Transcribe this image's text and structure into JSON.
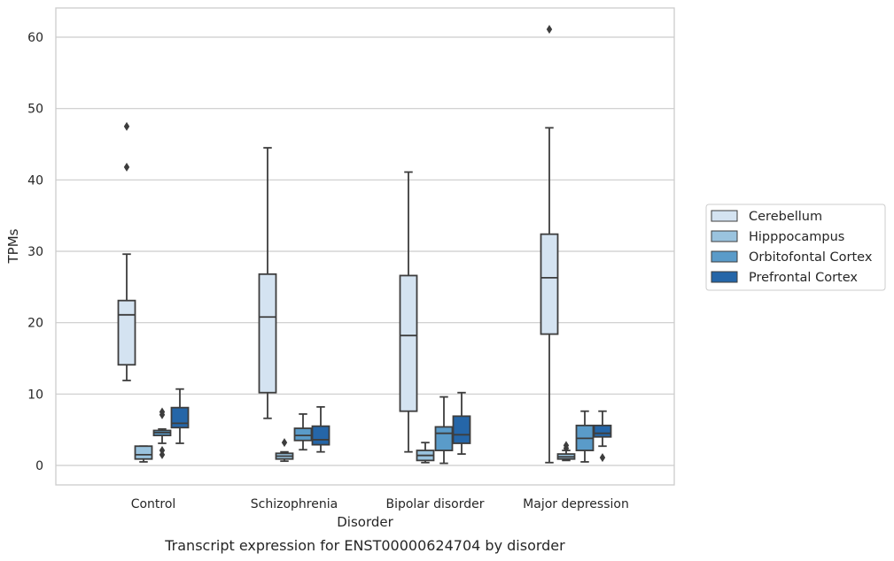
{
  "chart_data": {
    "type": "box",
    "title": "Transcript expression for ENST00000624704 by disorder",
    "xlabel": "Disorder",
    "ylabel": "TPMs",
    "ylim": [
      -2.6,
      64
    ],
    "yticks": [
      0,
      10,
      20,
      30,
      40,
      50,
      60
    ],
    "grid": "horizontal",
    "legend_position": "right",
    "categories": [
      "Control",
      "Schizophrenia",
      "Bipolar disorder",
      "Major depression"
    ],
    "series": [
      {
        "name": "Cerebellum",
        "color": "#d4e3f1",
        "boxes": [
          {
            "whislo": 11.9,
            "q1": 14.1,
            "med": 21.1,
            "q3": 23.1,
            "whishi": 29.6,
            "fliers": [
              41.8,
              47.5
            ]
          },
          {
            "whislo": 6.6,
            "q1": 10.2,
            "med": 20.8,
            "q3": 26.8,
            "whishi": 44.5,
            "fliers": []
          },
          {
            "whislo": 1.9,
            "q1": 7.6,
            "med": 18.2,
            "q3": 26.6,
            "whishi": 41.1,
            "fliers": []
          },
          {
            "whislo": 0.4,
            "q1": 18.4,
            "med": 26.3,
            "q3": 32.4,
            "whishi": 47.3,
            "fliers": [
              61.1
            ]
          }
        ]
      },
      {
        "name": "Hipppocampus",
        "color": "#9ac3de",
        "boxes": [
          {
            "whislo": 0.5,
            "q1": 0.9,
            "med": 1.5,
            "q3": 2.7,
            "whishi": 2.7,
            "fliers": []
          },
          {
            "whislo": 0.6,
            "q1": 0.9,
            "med": 1.3,
            "q3": 1.7,
            "whishi": 1.9,
            "fliers": [
              3.2
            ]
          },
          {
            "whislo": 0.4,
            "q1": 0.7,
            "med": 1.4,
            "q3": 2.1,
            "whishi": 3.2,
            "fliers": []
          },
          {
            "whislo": 0.7,
            "q1": 0.9,
            "med": 1.2,
            "q3": 1.6,
            "whishi": 2.1,
            "fliers": [
              2.4,
              2.8
            ]
          }
        ]
      },
      {
        "name": "Orbitofontal Cortex",
        "color": "#5a9bc9",
        "boxes": [
          {
            "whislo": 3.1,
            "q1": 4.2,
            "med": 4.6,
            "q3": 4.9,
            "whishi": 5.1,
            "fliers": [
              1.5,
              2.1,
              7.1,
              7.5
            ]
          },
          {
            "whislo": 2.2,
            "q1": 3.5,
            "med": 4.2,
            "q3": 5.2,
            "whishi": 7.2,
            "fliers": []
          },
          {
            "whislo": 0.3,
            "q1": 2.1,
            "med": 4.5,
            "q3": 5.4,
            "whishi": 9.6,
            "fliers": []
          },
          {
            "whislo": 0.5,
            "q1": 2.1,
            "med": 3.8,
            "q3": 5.6,
            "whishi": 7.6,
            "fliers": []
          }
        ]
      },
      {
        "name": "Prefrontal Cortex",
        "color": "#2566a8",
        "boxes": [
          {
            "whislo": 3.1,
            "q1": 5.3,
            "med": 5.9,
            "q3": 8.1,
            "whishi": 10.7,
            "fliers": []
          },
          {
            "whislo": 1.9,
            "q1": 2.9,
            "med": 3.6,
            "q3": 5.5,
            "whishi": 8.2,
            "fliers": []
          },
          {
            "whislo": 1.6,
            "q1": 3.1,
            "med": 4.3,
            "q3": 6.9,
            "whishi": 10.2,
            "fliers": []
          },
          {
            "whislo": 2.7,
            "q1": 4.0,
            "med": 4.5,
            "q3": 5.6,
            "whishi": 7.6,
            "fliers": [
              1.1
            ]
          }
        ]
      }
    ]
  }
}
